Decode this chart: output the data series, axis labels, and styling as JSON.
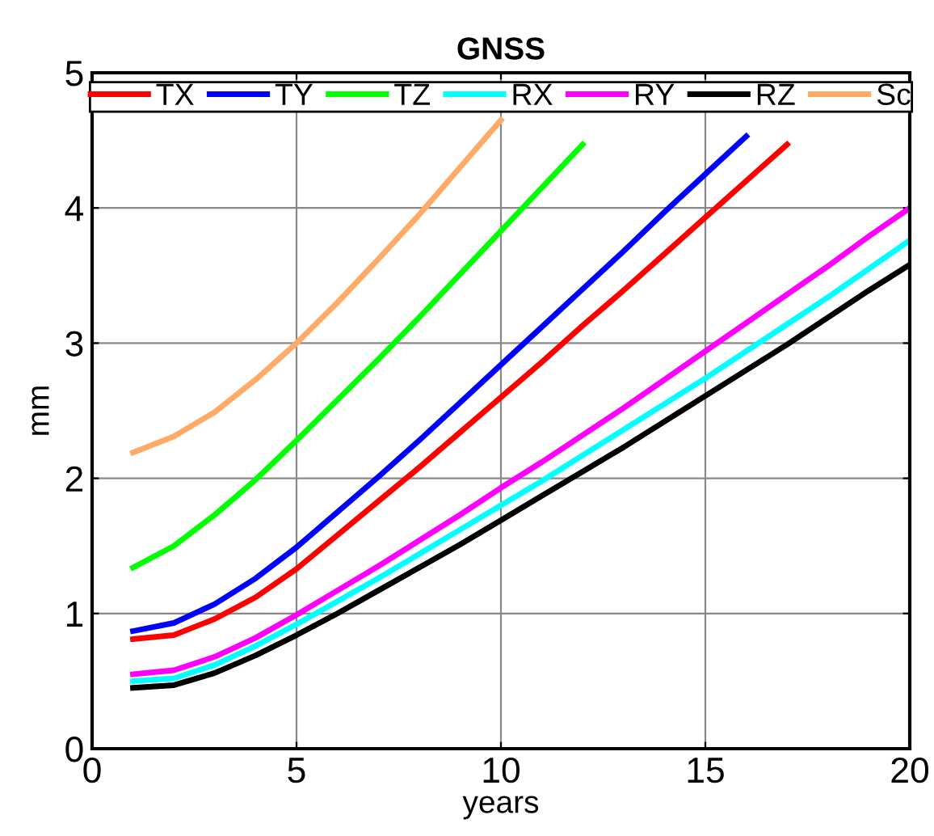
{
  "chart_data": {
    "type": "line",
    "title": "GNSS",
    "xlabel": "years",
    "ylabel": "mm",
    "xlim": [
      0,
      20
    ],
    "ylim": [
      0,
      5
    ],
    "xticks": [
      0,
      5,
      10,
      15,
      20
    ],
    "yticks": [
      0,
      1,
      2,
      3,
      4,
      5
    ],
    "grid": true,
    "legend": "top",
    "marker": "none",
    "line_style": "solid",
    "x": [
      1,
      2,
      3,
      4,
      5,
      6,
      7,
      8,
      9,
      10,
      11,
      12,
      13,
      14,
      15,
      16,
      17,
      18,
      19,
      20
    ],
    "series": [
      {
        "name": "TX",
        "color": "#ff0000",
        "x": [
          1,
          2,
          3,
          4,
          5,
          6,
          7,
          8,
          9,
          10,
          11,
          12,
          13,
          14,
          15,
          16,
          17
        ],
        "values": [
          0.81,
          0.84,
          0.96,
          1.12,
          1.33,
          1.58,
          1.83,
          2.08,
          2.34,
          2.6,
          2.86,
          3.13,
          3.39,
          3.66,
          3.93,
          4.2,
          4.47
        ]
      },
      {
        "name": "TY",
        "color": "#0000ff",
        "x": [
          1,
          2,
          3,
          4,
          5,
          6,
          7,
          8,
          9,
          10,
          11,
          12,
          13,
          14,
          15,
          16
        ],
        "values": [
          0.87,
          0.93,
          1.07,
          1.26,
          1.49,
          1.75,
          2.01,
          2.28,
          2.56,
          2.84,
          3.12,
          3.4,
          3.68,
          3.97,
          4.25,
          4.53
        ]
      },
      {
        "name": "TZ",
        "color": "#00ff00",
        "x": [
          1,
          2,
          3,
          4,
          5,
          6,
          7,
          8,
          9,
          10,
          11,
          12
        ],
        "values": [
          1.34,
          1.5,
          1.73,
          1.99,
          2.28,
          2.58,
          2.88,
          3.19,
          3.51,
          3.83,
          4.15,
          4.47
        ]
      },
      {
        "name": "RX",
        "color": "#00ffff",
        "values": [
          0.5,
          0.52,
          0.62,
          0.76,
          0.92,
          1.09,
          1.26,
          1.44,
          1.62,
          1.8,
          1.98,
          2.17,
          2.36,
          2.55,
          2.74,
          2.94,
          3.14,
          3.34,
          3.55,
          3.76
        ]
      },
      {
        "name": "RY",
        "color": "#ff00ff",
        "values": [
          0.55,
          0.58,
          0.68,
          0.82,
          0.99,
          1.17,
          1.35,
          1.54,
          1.73,
          1.93,
          2.12,
          2.32,
          2.52,
          2.73,
          2.94,
          3.15,
          3.36,
          3.57,
          3.79,
          4.0
        ]
      },
      {
        "name": "RZ",
        "color": "#000000",
        "values": [
          0.45,
          0.47,
          0.56,
          0.69,
          0.84,
          1.0,
          1.17,
          1.34,
          1.51,
          1.69,
          1.87,
          2.05,
          2.23,
          2.42,
          2.61,
          2.8,
          2.99,
          3.19,
          3.39,
          3.58
        ]
      },
      {
        "name": "Sc",
        "color": "#ffaa66",
        "x": [
          1,
          2,
          3,
          4,
          5,
          6,
          7,
          8,
          9,
          10
        ],
        "values": [
          2.19,
          2.31,
          2.49,
          2.73,
          3.0,
          3.3,
          3.62,
          3.95,
          4.3,
          4.65
        ]
      }
    ]
  }
}
